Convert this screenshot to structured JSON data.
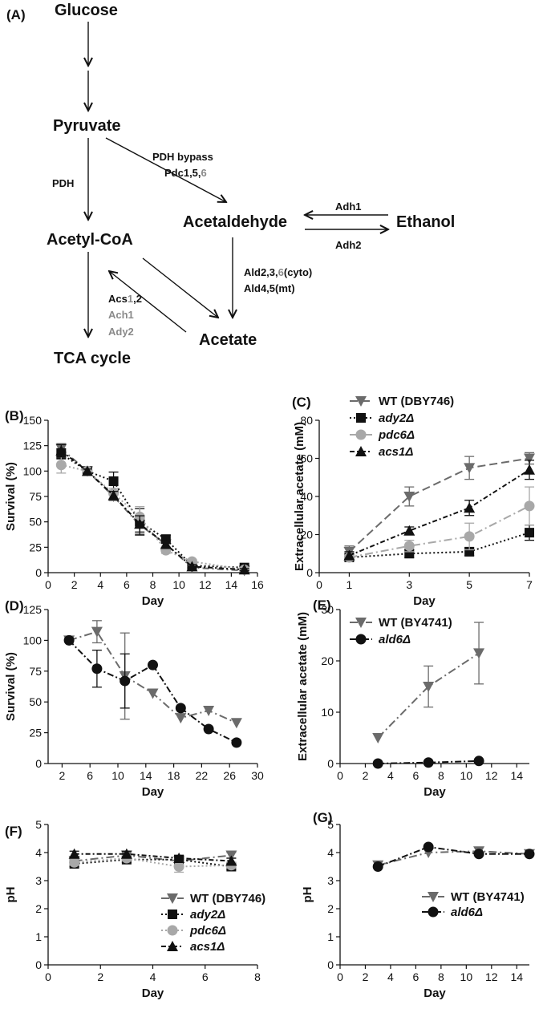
{
  "pathway": {
    "panel_label": "(A)",
    "nodes": {
      "glucose": "Glucose",
      "pyruvate": "Pyruvate",
      "acetyl_coa": "Acetyl-CoA",
      "acetaldehyde": "Acetaldehyde",
      "ethanol": "Ethanol",
      "acetate": "Acetate",
      "tca": "TCA cycle"
    },
    "labels": {
      "pdh": "PDH",
      "pdh_bypass": "PDH bypass",
      "pdc_a": "Pdc1,5,",
      "pdc_b": "6",
      "adh1": "Adh1",
      "adh2": "Adh2",
      "ald_a": "Ald2,3,",
      "ald_b": "6",
      "ald_c": "(cyto)",
      "ald2": "Ald4,5(mt)",
      "acs_a": "Acs",
      "acs_b": "1",
      "acs_c": ",2",
      "ach1": "Ach1",
      "ady2": "Ady2"
    },
    "colors": {
      "black": "#111111",
      "gray": "#8a8a8a"
    }
  },
  "chart_data": [
    {
      "panel_label": "(B)",
      "type": "line",
      "xlabel": "Day",
      "ylabel": "Survival (%)",
      "xlim": [
        0,
        16
      ],
      "ylim": [
        0,
        150
      ],
      "xticks": [
        0,
        2,
        4,
        6,
        8,
        10,
        12,
        14,
        16
      ],
      "yticks": [
        0,
        25,
        50,
        75,
        100,
        125,
        150
      ],
      "series": [
        {
          "key": "wt",
          "marker": "tri-down",
          "color": "#6b6b6b",
          "dash": "8,4,2,4",
          "x": [
            1,
            3,
            5,
            7,
            9,
            11,
            15
          ],
          "y": [
            122,
            100,
            75,
            47,
            28,
            5,
            2
          ],
          "err": [
            5,
            2,
            4,
            9,
            3,
            2,
            1
          ]
        },
        {
          "key": "ady2",
          "marker": "square",
          "color": "#111111",
          "dash": "2,3",
          "x": [
            1,
            3,
            5,
            7,
            9,
            11,
            15
          ],
          "y": [
            117,
            100,
            90,
            50,
            33,
            7,
            5
          ],
          "err": [
            5,
            2,
            9,
            13,
            4,
            2,
            2
          ]
        },
        {
          "key": "pdc6",
          "marker": "circle",
          "color": "#a8a8a8",
          "dash": "2,3",
          "x": [
            1,
            3,
            5,
            7,
            9,
            11,
            15
          ],
          "y": [
            106,
            100,
            78,
            55,
            22,
            11,
            3
          ],
          "err": [
            8,
            2,
            5,
            10,
            3,
            2,
            1
          ]
        },
        {
          "key": "acs1",
          "marker": "tri-up",
          "color": "#111111",
          "dash": "6,3,2,3",
          "x": [
            1,
            3,
            5,
            7,
            9,
            11,
            15
          ],
          "y": [
            120,
            100,
            76,
            48,
            28,
            6,
            3
          ],
          "err": [
            6,
            2,
            4,
            8,
            3,
            2,
            1
          ]
        }
      ],
      "legend": []
    },
    {
      "panel_label": "(C)",
      "type": "line",
      "xlabel": "Day",
      "ylabel": "Extracellular acetate (mM)",
      "xlim": [
        0,
        7
      ],
      "ylim": [
        0,
        80
      ],
      "xticks": [
        0,
        1,
        3,
        5,
        7
      ],
      "yticks": [
        0,
        20,
        40,
        60,
        80
      ],
      "series": [
        {
          "key": "wt",
          "marker": "tri-down",
          "color": "#6b6b6b",
          "dash": "10,5",
          "x": [
            1,
            3,
            5,
            7
          ],
          "y": [
            11,
            40,
            55,
            60
          ],
          "err": [
            3,
            5,
            6,
            3
          ]
        },
        {
          "key": "ady2",
          "marker": "square",
          "color": "#111111",
          "dash": "2,3",
          "x": [
            1,
            3,
            5,
            7
          ],
          "y": [
            8,
            10,
            11,
            21
          ],
          "err": [
            1,
            2,
            2,
            4
          ]
        },
        {
          "key": "pdc6",
          "marker": "circle",
          "color": "#a8a8a8",
          "dash": "10,4,2,4",
          "x": [
            1,
            3,
            5,
            7
          ],
          "y": [
            8,
            14,
            19,
            35
          ],
          "err": [
            1,
            3,
            7,
            10
          ]
        },
        {
          "key": "acs1",
          "marker": "tri-up",
          "color": "#111111",
          "dash": "6,3,2,3",
          "x": [
            1,
            3,
            5,
            7
          ],
          "y": [
            9,
            22,
            34,
            54
          ],
          "err": [
            2,
            2,
            4,
            5
          ]
        }
      ],
      "legend": [
        {
          "key": "wt",
          "text": "WT (DBY746)",
          "italic": false
        },
        {
          "key": "ady2",
          "text": "ady2Δ",
          "italic": true
        },
        {
          "key": "pdc6",
          "text": "pdc6Δ",
          "italic": true
        },
        {
          "key": "acs1",
          "text": "acs1Δ",
          "italic": true
        }
      ]
    },
    {
      "panel_label": "(D)",
      "type": "line",
      "xlabel": "Day",
      "ylabel": "Survival (%)",
      "xlim": [
        0,
        30
      ],
      "ylim": [
        0,
        125
      ],
      "xticks": [
        2,
        6,
        10,
        14,
        18,
        22,
        26,
        30
      ],
      "yticks": [
        0,
        25,
        50,
        75,
        100,
        125
      ],
      "series": [
        {
          "key": "wt",
          "marker": "tri-down",
          "color": "#6b6b6b",
          "dash": "10,4,2,4",
          "x": [
            3,
            7,
            11,
            15,
            19,
            23,
            27
          ],
          "y": [
            100,
            107,
            71,
            57,
            37,
            43,
            33
          ],
          "err": [
            0,
            9,
            35,
            0,
            0,
            0,
            0
          ]
        },
        {
          "key": "ald6",
          "marker": "circle",
          "color": "#111111",
          "dash": "8,3,2,3",
          "x": [
            3,
            7,
            11,
            15,
            19,
            23,
            27
          ],
          "y": [
            100,
            77,
            67,
            80,
            45,
            28,
            17
          ],
          "err": [
            0,
            15,
            22,
            0,
            0,
            0,
            0
          ]
        }
      ],
      "legend": []
    },
    {
      "panel_label": "(E)",
      "type": "line",
      "xlabel": "Day",
      "ylabel": "Extracellular acetate (mM)",
      "xlim": [
        0,
        15
      ],
      "ylim": [
        0,
        30
      ],
      "xticks": [
        0,
        2,
        4,
        6,
        8,
        10,
        12,
        14
      ],
      "yticks": [
        0,
        10,
        20,
        30
      ],
      "series": [
        {
          "key": "wt",
          "marker": "tri-down",
          "color": "#6b6b6b",
          "dash": "10,4,2,4",
          "x": [
            3,
            7,
            11
          ],
          "y": [
            5,
            15,
            21.5
          ],
          "err": [
            0,
            4,
            6
          ]
        },
        {
          "key": "ald6",
          "marker": "circle",
          "color": "#111111",
          "dash": "8,3,2,3",
          "x": [
            3,
            7,
            11
          ],
          "y": [
            0,
            0.2,
            0.5
          ],
          "err": [
            0,
            0,
            0
          ]
        }
      ],
      "legend": [
        {
          "key": "wt",
          "text": "WT (BY4741)",
          "italic": false
        },
        {
          "key": "ald6",
          "text": "ald6Δ",
          "italic": true
        }
      ]
    },
    {
      "panel_label": "(F)",
      "type": "line",
      "xlabel": "Day",
      "ylabel": "pH",
      "xlim": [
        0,
        8
      ],
      "ylim": [
        0,
        5
      ],
      "xticks": [
        0,
        2,
        4,
        6,
        8
      ],
      "yticks": [
        0,
        1,
        2,
        3,
        4,
        5
      ],
      "series": [
        {
          "key": "wt",
          "marker": "tri-down",
          "color": "#6b6b6b",
          "dash": "10,4,2,4",
          "x": [
            1,
            3,
            5,
            7
          ],
          "y": [
            3.7,
            3.9,
            3.7,
            3.9
          ],
          "err": [
            0.1,
            0.1,
            0.2,
            0.1
          ]
        },
        {
          "key": "ady2",
          "marker": "square",
          "color": "#111111",
          "dash": "2,3",
          "x": [
            1,
            3,
            5,
            7
          ],
          "y": [
            3.6,
            3.75,
            3.75,
            3.5
          ],
          "err": [
            0.1,
            0.1,
            0.1,
            0.1
          ]
        },
        {
          "key": "pdc6",
          "marker": "circle",
          "color": "#a8a8a8",
          "dash": "2,3",
          "x": [
            1,
            3,
            5,
            7
          ],
          "y": [
            3.65,
            3.8,
            3.5,
            3.55
          ],
          "err": [
            0.1,
            0.1,
            0.2,
            0.1
          ]
        },
        {
          "key": "acs1",
          "marker": "tri-up",
          "color": "#111111",
          "dash": "6,3,2,3",
          "x": [
            1,
            3,
            5,
            7
          ],
          "y": [
            3.95,
            3.95,
            3.8,
            3.7
          ],
          "err": [
            0.1,
            0.1,
            0.1,
            0.1
          ]
        }
      ],
      "legend": [
        {
          "key": "wt",
          "text": "WT (DBY746)",
          "italic": false
        },
        {
          "key": "ady2",
          "text": "ady2Δ",
          "italic": true
        },
        {
          "key": "pdc6",
          "text": "pdc6Δ",
          "italic": true
        },
        {
          "key": "acs1",
          "text": "acs1Δ",
          "italic": true
        }
      ]
    },
    {
      "panel_label": "(G)",
      "type": "line",
      "xlabel": "Day",
      "ylabel": "pH",
      "xlim": [
        0,
        15
      ],
      "ylim": [
        0,
        5
      ],
      "xticks": [
        0,
        2,
        4,
        6,
        8,
        10,
        12,
        14
      ],
      "yticks": [
        0,
        1,
        2,
        3,
        4,
        5
      ],
      "series": [
        {
          "key": "wt",
          "marker": "tri-down",
          "color": "#6b6b6b",
          "dash": "10,4,2,4",
          "x": [
            3,
            7,
            11,
            15
          ],
          "y": [
            3.55,
            4.0,
            4.05,
            3.95
          ],
          "err": [
            0,
            0,
            0,
            0
          ]
        },
        {
          "key": "ald6",
          "marker": "circle",
          "color": "#111111",
          "dash": "8,3,2,3",
          "x": [
            3,
            7,
            11,
            15
          ],
          "y": [
            3.5,
            4.2,
            3.95,
            3.95
          ],
          "err": [
            0,
            0,
            0,
            0
          ]
        }
      ],
      "legend": [
        {
          "key": "wt",
          "text": "WT (BY4741)",
          "italic": false
        },
        {
          "key": "ald6",
          "text": "ald6Δ",
          "italic": true
        }
      ]
    }
  ]
}
